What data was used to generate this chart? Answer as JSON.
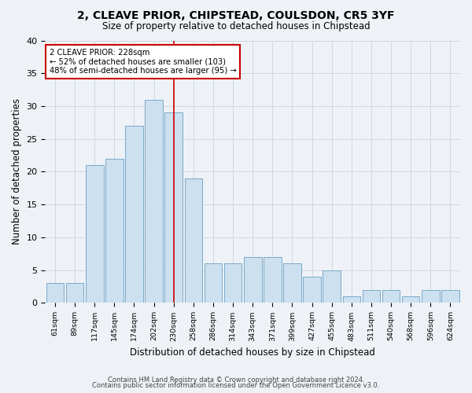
{
  "title": "2, CLEAVE PRIOR, CHIPSTEAD, COULSDON, CR5 3YF",
  "subtitle": "Size of property relative to detached houses in Chipstead",
  "xlabel": "Distribution of detached houses by size in Chipstead",
  "ylabel": "Number of detached properties",
  "categories": [
    "61sqm",
    "89sqm",
    "117sqm",
    "145sqm",
    "174sqm",
    "202sqm",
    "230sqm",
    "258sqm",
    "286sqm",
    "314sqm",
    "343sqm",
    "371sqm",
    "399sqm",
    "427sqm",
    "455sqm",
    "483sqm",
    "511sqm",
    "540sqm",
    "568sqm",
    "596sqm",
    "624sqm"
  ],
  "values": [
    3,
    3,
    21,
    22,
    27,
    31,
    29,
    19,
    6,
    6,
    7,
    7,
    6,
    4,
    5,
    1,
    2,
    2,
    1,
    2,
    2
  ],
  "bar_color": "#cce0f0",
  "bar_edge_color": "#7aaac8",
  "vline_index": 6,
  "vline_color": "#cc0000",
  "annotation_title": "2 CLEAVE PRIOR: 228sqm",
  "annotation_line1": "← 52% of detached houses are smaller (103)",
  "annotation_line2": "48% of semi-detached houses are larger (95) →",
  "annotation_box_color": "#cc0000",
  "ylim": [
    0,
    40
  ],
  "yticks": [
    0,
    5,
    10,
    15,
    20,
    25,
    30,
    35,
    40
  ],
  "grid_color": "#d0d8e0",
  "background_color": "#eef2f7",
  "footer1": "Contains HM Land Registry data © Crown copyright and database right 2024.",
  "footer2": "Contains public sector information licensed under the Open Government Licence v3.0."
}
